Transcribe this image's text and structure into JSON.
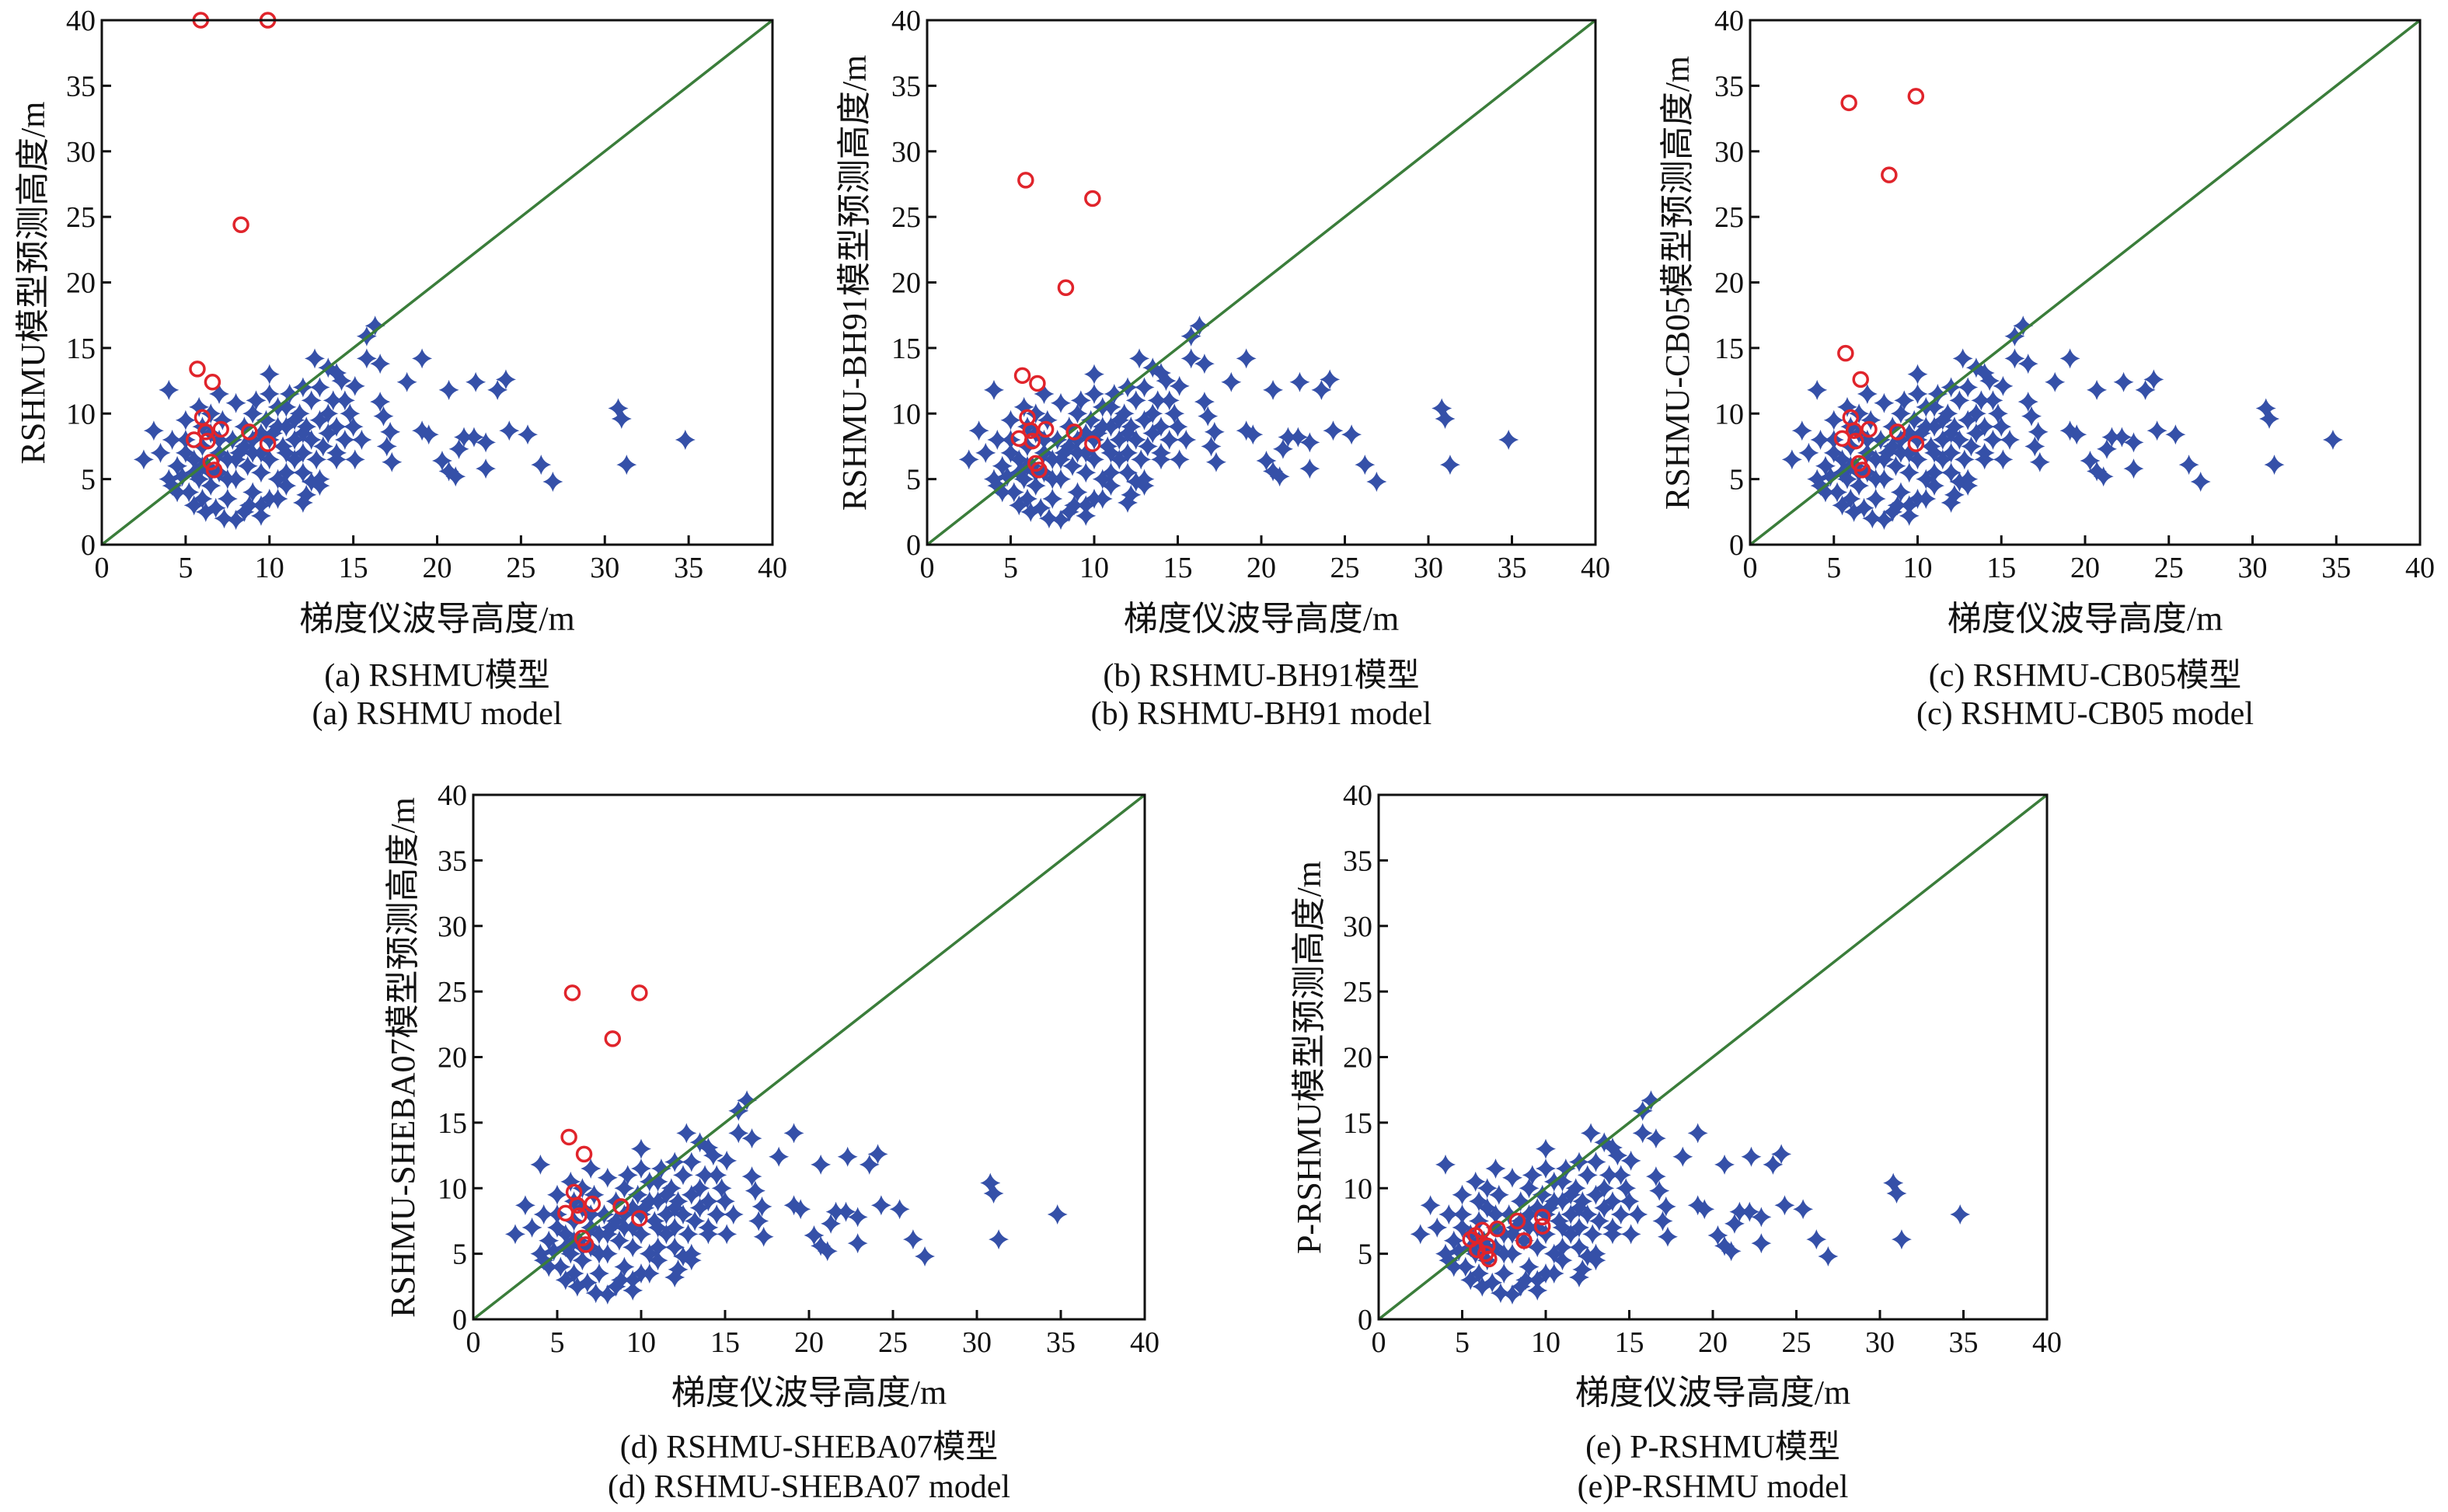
{
  "colors": {
    "scatter_measured": "#3550A8",
    "outlier": "#E0242B",
    "reference_line": "#3A7D3A",
    "axis": "#111111"
  },
  "common_series": {
    "name": "",
    "marker": "diamond",
    "points": [
      [
        16.3,
        16.7
      ],
      [
        15.8,
        15.9
      ],
      [
        15.8,
        14.2
      ],
      [
        16.6,
        13.8
      ],
      [
        19.1,
        14.2
      ],
      [
        18.2,
        12.4
      ],
      [
        20.7,
        11.8
      ],
      [
        22.3,
        12.4
      ],
      [
        23.6,
        11.8
      ],
      [
        24.1,
        12.6
      ],
      [
        30.8,
        10.4
      ],
      [
        31.0,
        9.6
      ],
      [
        34.8,
        8.0
      ],
      [
        31.3,
        6.1
      ],
      [
        26.9,
        4.8
      ],
      [
        26.2,
        6.1
      ],
      [
        25.4,
        8.4
      ],
      [
        24.3,
        8.7
      ],
      [
        22.9,
        5.8
      ],
      [
        22.9,
        7.8
      ],
      [
        22.2,
        8.2
      ],
      [
        21.6,
        8.2
      ],
      [
        21.3,
        7.3
      ],
      [
        21.1,
        5.2
      ],
      [
        20.3,
        6.4
      ],
      [
        20.7,
        5.6
      ],
      [
        19.5,
        8.4
      ],
      [
        19.1,
        8.7
      ],
      [
        17.3,
        6.3
      ],
      [
        17.0,
        7.5
      ],
      [
        17.2,
        8.6
      ],
      [
        16.8,
        9.8
      ],
      [
        16.6,
        10.9
      ],
      [
        15.1,
        12.1
      ],
      [
        15.1,
        6.5
      ],
      [
        12.2,
        3.8
      ],
      [
        8.0,
        1.9
      ],
      [
        4.0,
        11.8
      ],
      [
        3.1,
        8.7
      ],
      [
        2.5,
        6.5
      ],
      [
        10.0,
        13.0
      ],
      [
        12.7,
        14.2
      ],
      [
        14.0,
        13.1
      ],
      [
        4.2,
        4.5
      ],
      [
        4.5,
        6
      ],
      [
        4.8,
        5.2
      ],
      [
        5,
        7
      ],
      [
        5.2,
        4
      ],
      [
        5.5,
        6.5
      ],
      [
        5.8,
        5
      ],
      [
        6,
        7.5
      ],
      [
        6,
        3.5
      ],
      [
        6.3,
        6
      ],
      [
        6.5,
        8.5
      ],
      [
        6.5,
        4.5
      ],
      [
        6.8,
        2.8
      ],
      [
        7,
        7
      ],
      [
        7,
        5.5
      ],
      [
        7.2,
        9.5
      ],
      [
        7.5,
        6.5
      ],
      [
        7.5,
        3.5
      ],
      [
        7.8,
        8
      ],
      [
        8,
        5
      ],
      [
        8,
        10.8
      ],
      [
        8.2,
        7
      ],
      [
        8.5,
        2.5
      ],
      [
        8.5,
        9
      ],
      [
        8.7,
        6
      ],
      [
        9,
        4
      ],
      [
        9,
        8
      ],
      [
        9.2,
        11
      ],
      [
        9.5,
        7
      ],
      [
        9.5,
        5.5
      ],
      [
        9.8,
        9.5
      ],
      [
        10,
        3.5
      ],
      [
        10,
        6.5
      ],
      [
        10.2,
        8.5
      ],
      [
        10.5,
        10.5
      ],
      [
        10.5,
        5
      ],
      [
        10.8,
        7.5
      ],
      [
        11,
        9
      ],
      [
        11,
        4.5
      ],
      [
        11.2,
        11.5
      ],
      [
        11.5,
        6.5
      ],
      [
        11.5,
        8
      ],
      [
        11.8,
        10
      ],
      [
        12,
        7
      ],
      [
        12,
        5.5
      ],
      [
        12.2,
        9
      ],
      [
        12.5,
        11
      ],
      [
        12.5,
        8
      ],
      [
        12.8,
        6.5
      ],
      [
        13,
        9.5
      ],
      [
        13,
        12
      ],
      [
        13.2,
        7.5
      ],
      [
        13.5,
        10
      ],
      [
        13.5,
        8.5
      ],
      [
        13.8,
        11
      ],
      [
        14,
        9
      ],
      [
        14,
        7
      ],
      [
        14.3,
        12.5
      ],
      [
        14.5,
        8
      ],
      [
        14.8,
        10
      ],
      [
        6,
        6
      ],
      [
        7,
        8
      ],
      [
        8,
        6.5
      ],
      [
        9,
        7
      ],
      [
        10,
        8
      ],
      [
        11,
        7
      ],
      [
        12,
        8.5
      ],
      [
        8.5,
        7.5
      ],
      [
        9.5,
        8.5
      ],
      [
        10.5,
        9
      ],
      [
        11.5,
        9.5
      ],
      [
        7.5,
        5
      ],
      [
        6.5,
        5.5
      ],
      [
        5.5,
        5.5
      ],
      [
        4,
        5
      ],
      [
        4.5,
        4
      ],
      [
        5,
        8
      ],
      [
        6,
        9
      ],
      [
        6.5,
        10
      ],
      [
        7,
        11.5
      ],
      [
        5.5,
        3
      ],
      [
        6.2,
        2.5
      ],
      [
        7.3,
        2
      ],
      [
        8.8,
        3
      ],
      [
        9.5,
        3
      ],
      [
        10.5,
        3.5
      ],
      [
        11,
        5.5
      ],
      [
        12.5,
        4.8
      ],
      [
        13,
        5
      ],
      [
        14,
        6.5
      ],
      [
        15,
        9
      ],
      [
        15.5,
        8
      ],
      [
        3.5,
        7
      ],
      [
        4.2,
        8
      ],
      [
        5,
        9.5
      ],
      [
        5.8,
        10.5
      ],
      [
        12,
        12
      ],
      [
        13.5,
        13.5
      ],
      [
        11,
        10.5
      ],
      [
        9,
        10
      ],
      [
        10,
        11.5
      ],
      [
        14.5,
        11
      ],
      [
        13,
        4.5
      ],
      [
        12,
        3.2
      ],
      [
        9.5,
        2.2
      ]
    ]
  },
  "chart_data": [
    {
      "type": "scatter",
      "xlabel": "梯度仪波导高度/m",
      "ylabel": "RSHMU模型预测高度/m",
      "caption_cn": "(a) RSHMU模型",
      "caption_en": "(a) RSHMU model",
      "xlim": [
        0,
        40
      ],
      "ylim": [
        0,
        40
      ],
      "xticks": [
        0,
        5,
        10,
        15,
        20,
        25,
        30,
        35,
        40
      ],
      "yticks": [
        0,
        5,
        10,
        15,
        20,
        25,
        30,
        35,
        40
      ],
      "reference_line": "y=x",
      "grid": false,
      "outliers": [
        [
          5.9,
          40
        ],
        [
          9.9,
          40
        ],
        [
          8.3,
          24.4
        ],
        [
          5.7,
          13.4
        ],
        [
          6.6,
          12.4
        ],
        [
          6.0,
          9.7
        ],
        [
          6.2,
          8.6
        ],
        [
          7.1,
          8.8
        ],
        [
          8.8,
          8.6
        ],
        [
          5.5,
          8.0
        ],
        [
          6.3,
          7.9
        ],
        [
          9.9,
          7.7
        ],
        [
          6.5,
          6.3
        ],
        [
          6.7,
          5.7
        ]
      ]
    },
    {
      "type": "scatter",
      "xlabel": "梯度仪波导高度/m",
      "ylabel": "RSHMU-BH91模型预测高度/m",
      "caption_cn": "(b) RSHMU-BH91模型",
      "caption_en": "(b) RSHMU-BH91 model",
      "xlim": [
        0,
        40
      ],
      "ylim": [
        0,
        40
      ],
      "xticks": [
        0,
        5,
        10,
        15,
        20,
        25,
        30,
        35,
        40
      ],
      "yticks": [
        0,
        5,
        10,
        15,
        20,
        25,
        30,
        35,
        40
      ],
      "reference_line": "y=x",
      "grid": false,
      "outliers": [
        [
          5.9,
          27.8
        ],
        [
          9.9,
          26.4
        ],
        [
          8.3,
          19.6
        ],
        [
          5.7,
          12.9
        ],
        [
          6.6,
          12.3
        ],
        [
          6.0,
          9.7
        ],
        [
          6.2,
          8.7
        ],
        [
          7.1,
          8.8
        ],
        [
          8.8,
          8.6
        ],
        [
          5.5,
          8.1
        ],
        [
          6.3,
          7.9
        ],
        [
          9.9,
          7.7
        ],
        [
          6.5,
          6.2
        ],
        [
          6.7,
          5.7
        ]
      ]
    },
    {
      "type": "scatter",
      "xlabel": "梯度仪波导高度/m",
      "ylabel": "RSHMU-CB05模型预测高度/m",
      "caption_cn": "(c) RSHMU-CB05模型",
      "caption_en": "(c) RSHMU-CB05 model",
      "xlim": [
        0,
        40
      ],
      "ylim": [
        0,
        40
      ],
      "xticks": [
        0,
        5,
        10,
        15,
        20,
        25,
        30,
        35,
        40
      ],
      "yticks": [
        0,
        5,
        10,
        15,
        20,
        25,
        30,
        35,
        40
      ],
      "reference_line": "y=x",
      "grid": false,
      "outliers": [
        [
          5.9,
          33.7
        ],
        [
          9.9,
          34.2
        ],
        [
          8.3,
          28.2
        ],
        [
          5.7,
          14.6
        ],
        [
          6.6,
          12.6
        ],
        [
          6.0,
          9.7
        ],
        [
          6.2,
          8.7
        ],
        [
          7.1,
          8.8
        ],
        [
          8.8,
          8.6
        ],
        [
          5.5,
          8.1
        ],
        [
          6.3,
          7.9
        ],
        [
          9.9,
          7.7
        ],
        [
          6.5,
          6.2
        ],
        [
          6.7,
          5.7
        ]
      ]
    },
    {
      "type": "scatter",
      "xlabel": "梯度仪波导高度/m",
      "ylabel": "RSHMU-SHEBA07模型预测高度/m",
      "caption_cn": "(d) RSHMU-SHEBA07模型",
      "caption_en": "(d) RSHMU-SHEBA07 model",
      "xlim": [
        0,
        40
      ],
      "ylim": [
        0,
        40
      ],
      "xticks": [
        0,
        5,
        10,
        15,
        20,
        25,
        30,
        35,
        40
      ],
      "yticks": [
        0,
        5,
        10,
        15,
        20,
        25,
        30,
        35,
        40
      ],
      "reference_line": "y=x",
      "grid": false,
      "outliers": [
        [
          5.9,
          24.9
        ],
        [
          9.9,
          24.9
        ],
        [
          8.3,
          21.4
        ],
        [
          5.7,
          13.9
        ],
        [
          6.6,
          12.6
        ],
        [
          6.0,
          9.7
        ],
        [
          6.2,
          8.7
        ],
        [
          7.1,
          8.8
        ],
        [
          8.8,
          8.6
        ],
        [
          5.5,
          8.1
        ],
        [
          6.3,
          7.9
        ],
        [
          9.9,
          7.7
        ],
        [
          6.5,
          6.2
        ],
        [
          6.7,
          5.7
        ]
      ]
    },
    {
      "type": "scatter",
      "xlabel": "梯度仪波导高度/m",
      "ylabel": "P-RSHMU模型预测高度/m",
      "caption_cn": "(e) P-RSHMU模型",
      "caption_en": "(e)P-RSHMU model",
      "xlim": [
        0,
        40
      ],
      "ylim": [
        0,
        40
      ],
      "xticks": [
        0,
        5,
        10,
        15,
        20,
        25,
        30,
        35,
        40
      ],
      "yticks": [
        0,
        5,
        10,
        15,
        20,
        25,
        30,
        35,
        40
      ],
      "reference_line": "y=x",
      "grid": false,
      "outliers": [
        [
          5.5,
          6.1
        ],
        [
          5.8,
          6.4
        ],
        [
          6.2,
          6.8
        ],
        [
          5.9,
          5.3
        ],
        [
          6.5,
          5.6
        ],
        [
          6.6,
          4.6
        ],
        [
          6.4,
          5.0
        ],
        [
          7.1,
          6.9
        ],
        [
          8.3,
          7.5
        ],
        [
          8.7,
          6.0
        ],
        [
          9.8,
          7.8
        ],
        [
          9.8,
          7.1
        ]
      ]
    }
  ]
}
